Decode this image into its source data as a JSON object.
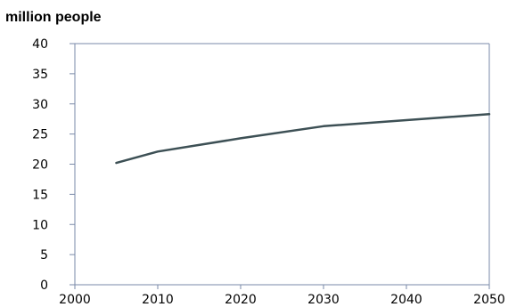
{
  "chart_data": {
    "type": "line",
    "title": "million people",
    "xlabel": "",
    "ylabel": "",
    "xlim": [
      2000,
      2050
    ],
    "ylim": [
      0,
      40
    ],
    "xticks": [
      2000,
      2010,
      2020,
      2030,
      2040,
      2050
    ],
    "yticks": [
      0,
      5,
      10,
      15,
      20,
      25,
      30,
      35,
      40
    ],
    "grid": false,
    "series": [
      {
        "color": "#3d5055",
        "x": [
          2005,
          2010,
          2020,
          2030,
          2040,
          2050
        ],
        "y": [
          20.2,
          22.1,
          24.3,
          26.3,
          27.3,
          28.3
        ]
      }
    ]
  }
}
